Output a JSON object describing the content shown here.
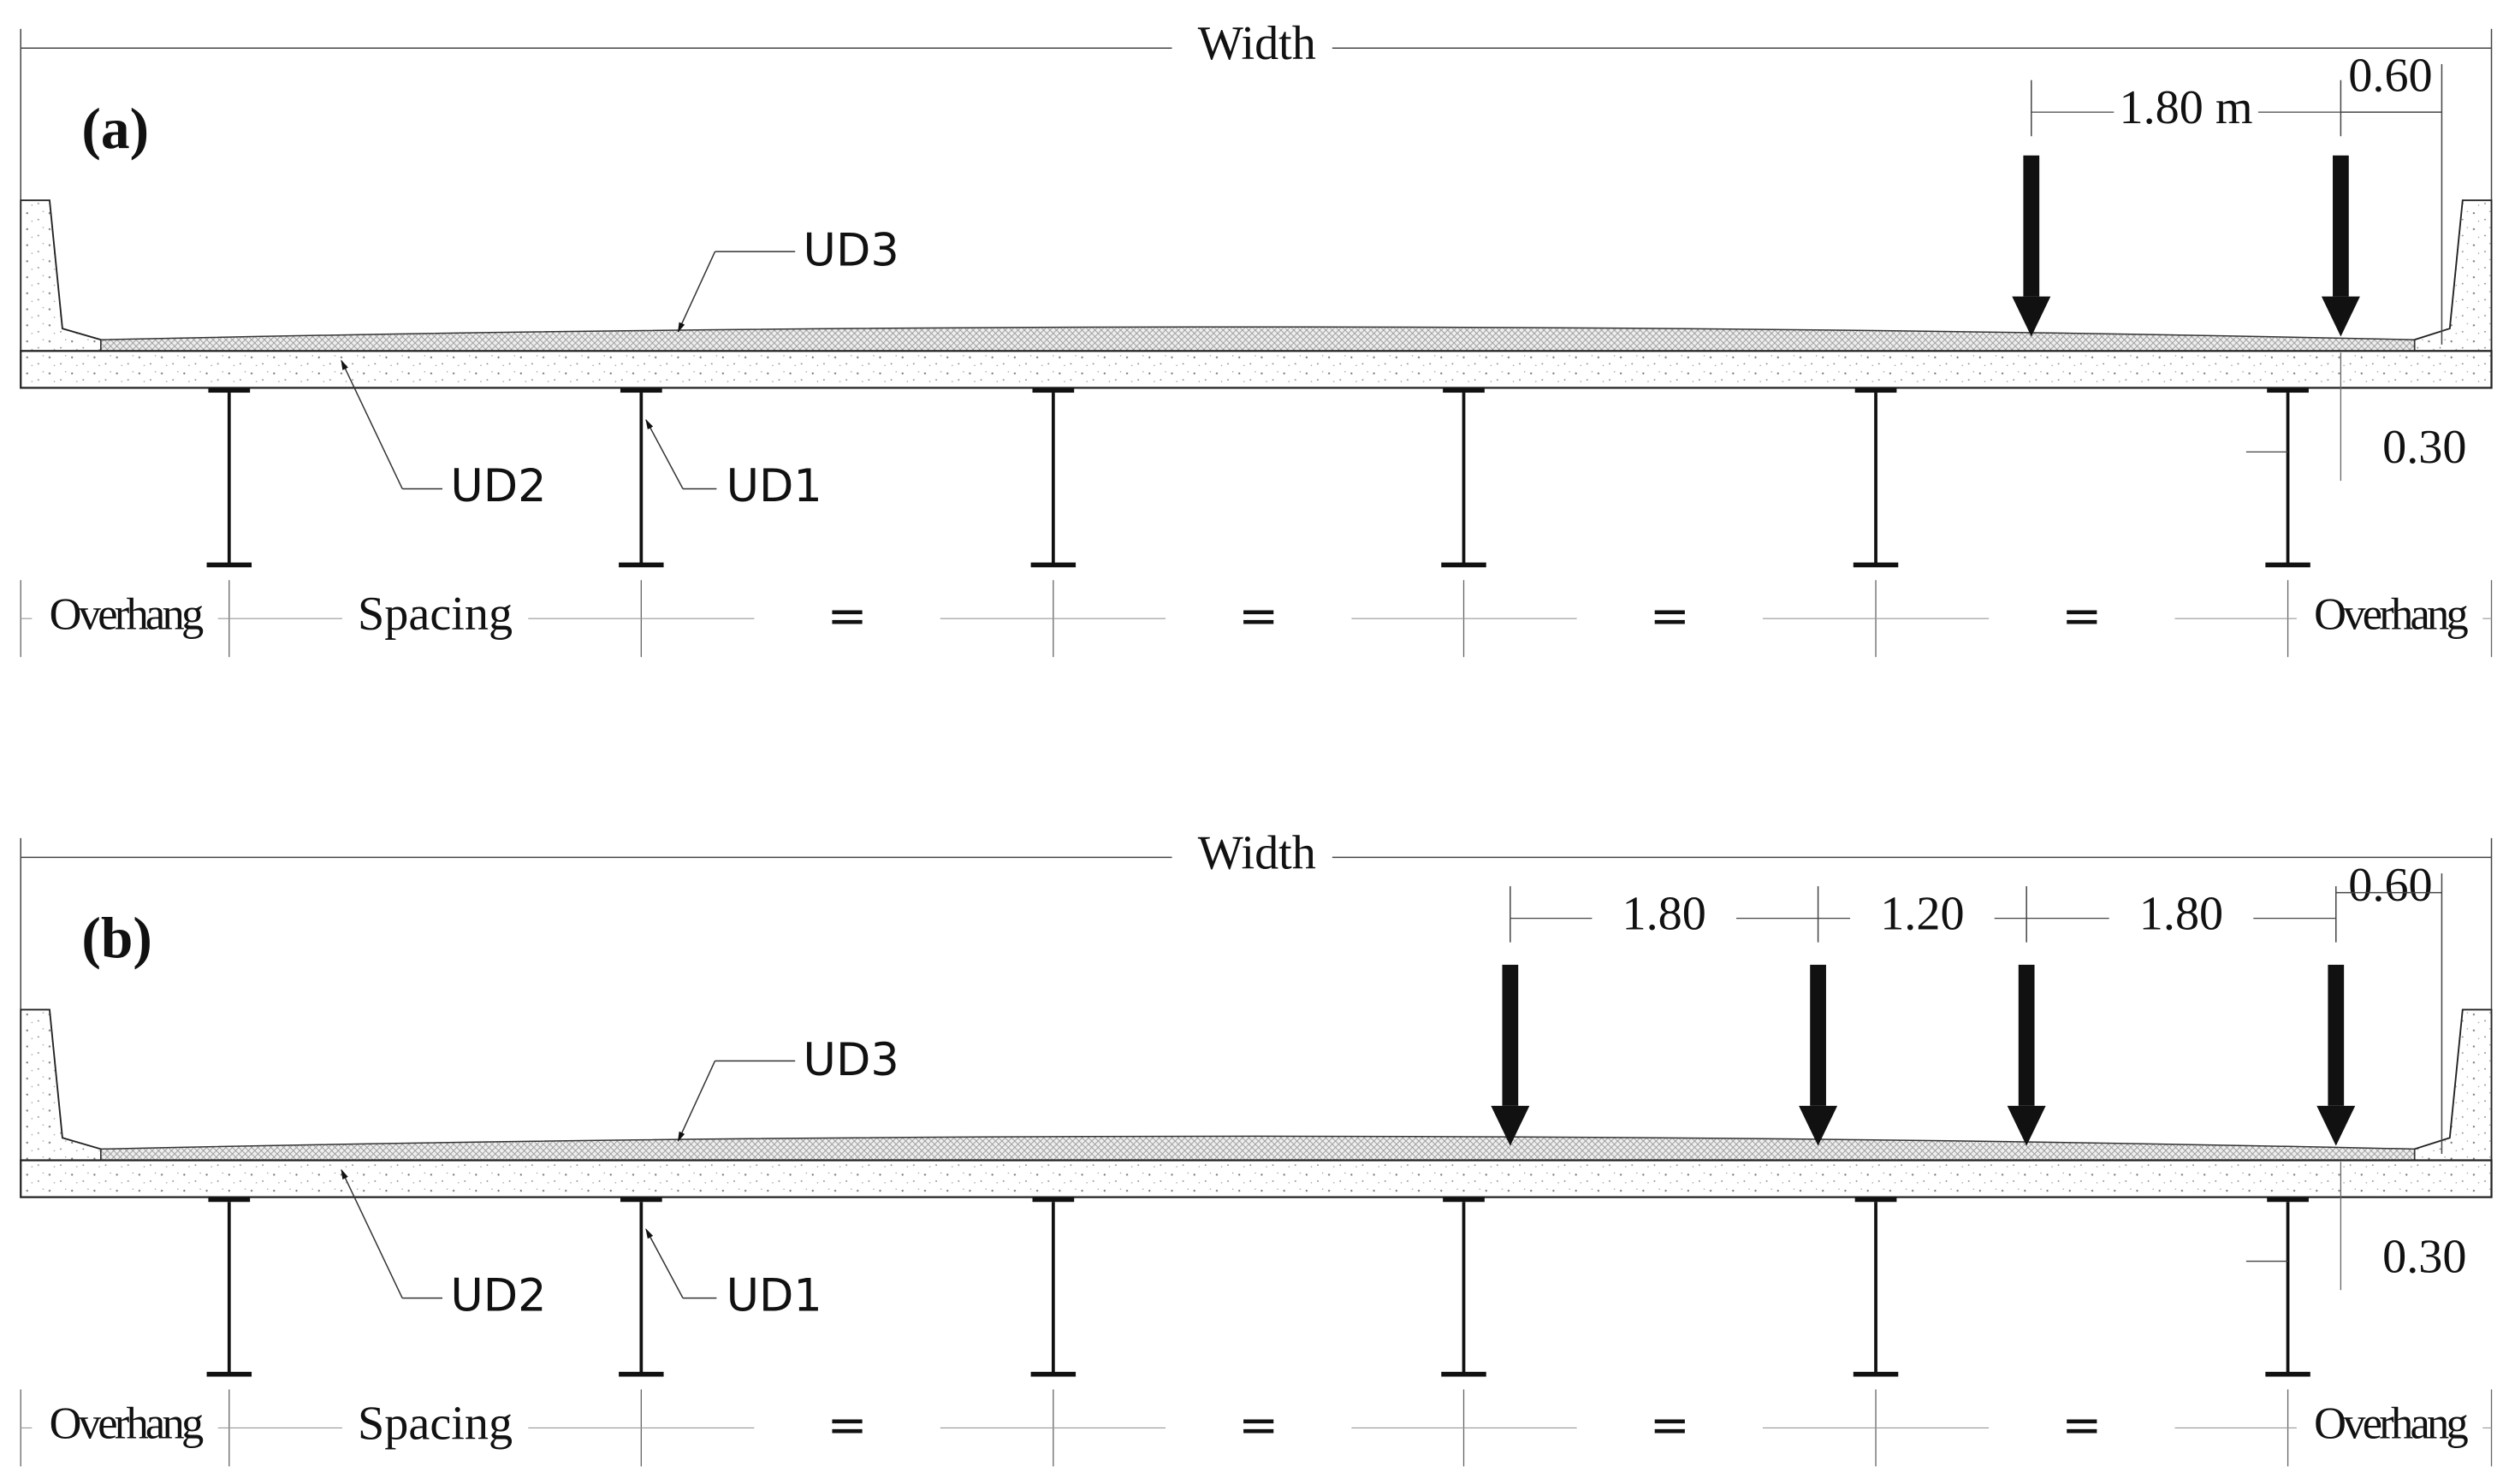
{
  "panels": [
    {
      "label": "(a)",
      "width_label": "Width",
      "load_spacings": [
        "1.80 m"
      ],
      "edge_distance": "0.60",
      "girder_height": "0.30",
      "callouts": [
        "UD3",
        "UD2",
        "UD1"
      ],
      "spacing_labels": [
        "Overhang",
        "Spacing",
        "=",
        "=",
        "=",
        "=",
        "Overhang"
      ]
    },
    {
      "label": "(b)",
      "width_label": "Width",
      "load_spacings": [
        "1.80",
        "1.20",
        "1.80"
      ],
      "edge_distance": "0.60",
      "girder_height": "0.30",
      "callouts": [
        "UD3",
        "UD2",
        "UD1"
      ],
      "spacing_labels": [
        "Overhang",
        "Spacing",
        "=",
        "=",
        "=",
        "=",
        "Overhang"
      ]
    }
  ]
}
